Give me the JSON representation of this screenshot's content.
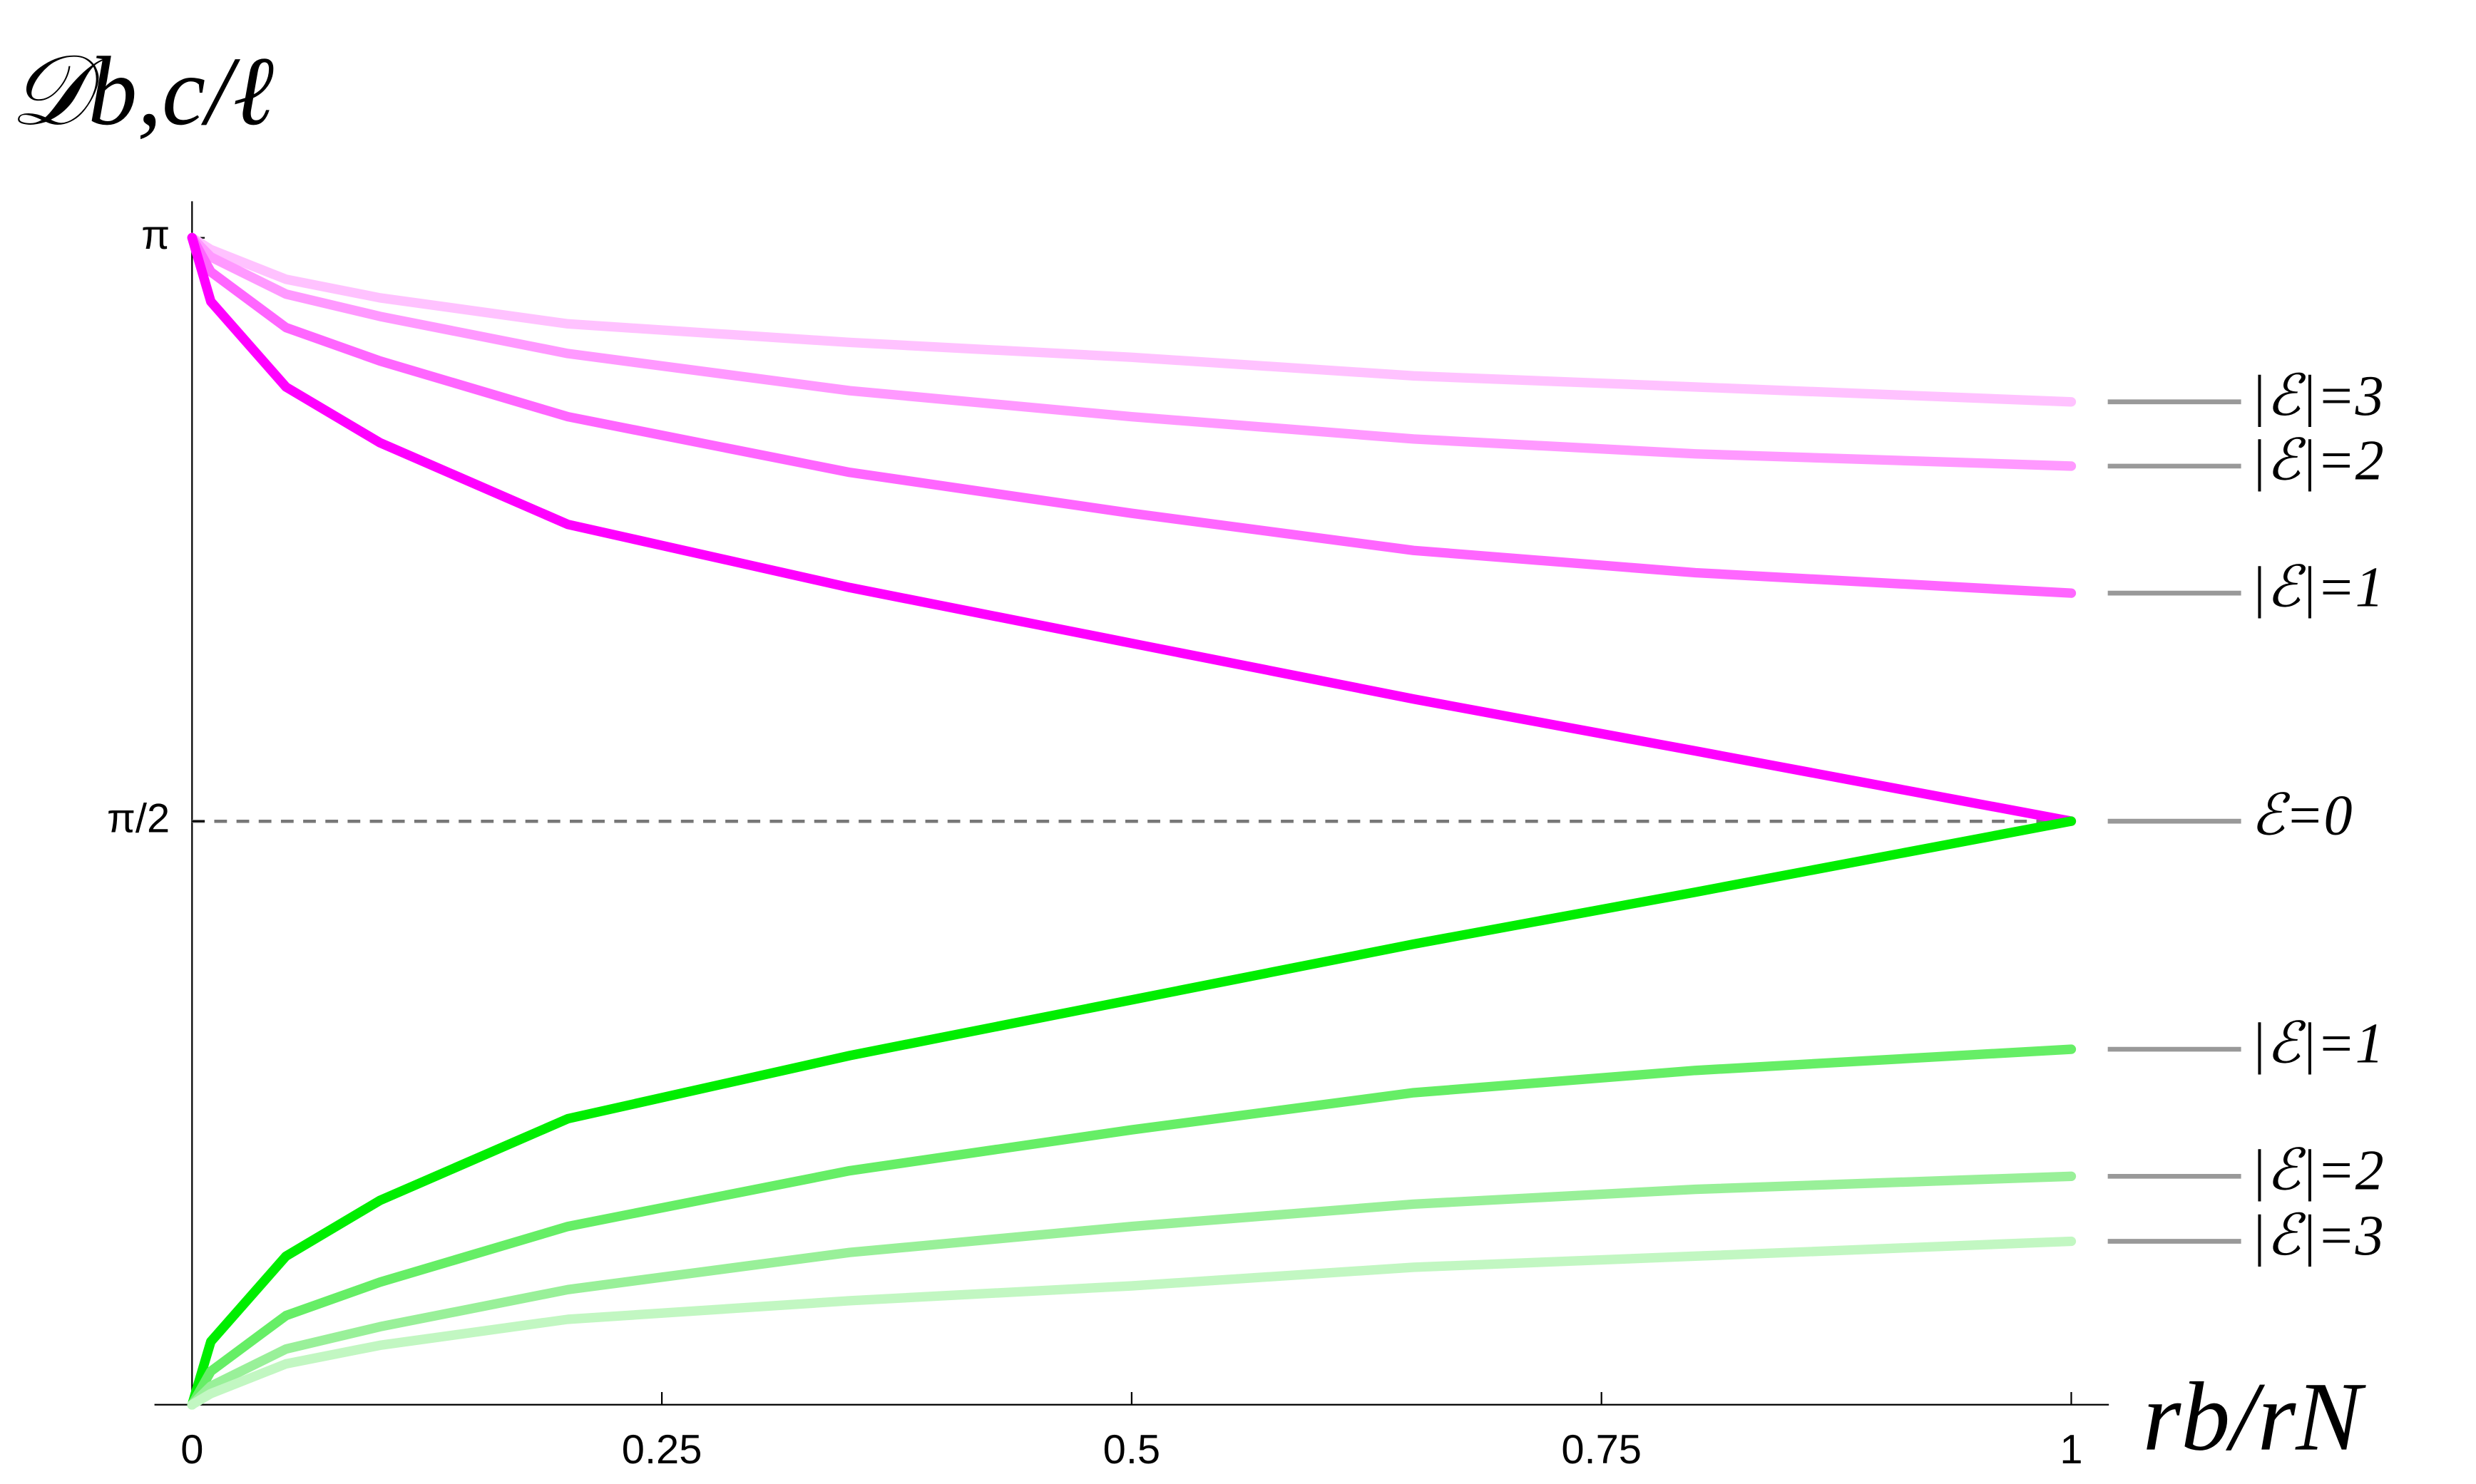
{
  "chart_data": {
    "type": "line",
    "y_label": "𝒟b,c/ℓ",
    "x_label": "rb/rN",
    "x": [
      0,
      0.01,
      0.05,
      0.1,
      0.2,
      0.35,
      0.5,
      0.65,
      0.8,
      1
    ],
    "xlim": [
      -0.02,
      1.02
    ],
    "xticks": [
      0,
      0.25,
      0.5,
      0.75,
      1
    ],
    "ylim": [
      0,
      3.24
    ],
    "yticks": [
      {
        "value": 3.14159,
        "label": "π"
      },
      {
        "value": 1.5708,
        "label": "π/2"
      }
    ],
    "hline": 1.5708,
    "series": [
      {
        "name": "|ℰ|=3",
        "color": "#ffc2ff",
        "values": [
          3.142,
          3.11,
          3.03,
          2.98,
          2.91,
          2.86,
          2.82,
          2.77,
          2.74,
          2.7
        ]
      },
      {
        "name": "|ℰ|=2",
        "color": "#ff99ff",
        "values": [
          3.142,
          3.09,
          2.99,
          2.93,
          2.83,
          2.73,
          2.66,
          2.6,
          2.56,
          2.527
        ]
      },
      {
        "name": "|ℰ|=1",
        "color": "#ff66ff",
        "values": [
          3.142,
          3.05,
          2.9,
          2.81,
          2.66,
          2.51,
          2.4,
          2.3,
          2.24,
          2.185
        ]
      },
      {
        "name": "ℰ=0",
        "color": "#ff00ff",
        "values": [
          3.142,
          2.97,
          2.74,
          2.59,
          2.37,
          2.2,
          2.05,
          1.9,
          1.76,
          1.571
        ]
      },
      {
        "color": "#00ee00",
        "values": [
          0,
          0.17,
          0.4,
          0.55,
          0.77,
          0.94,
          1.09,
          1.24,
          1.38,
          1.571
        ]
      },
      {
        "name": "|ℰ|=1",
        "color": "#66ee66",
        "values": [
          0,
          0.09,
          0.24,
          0.33,
          0.48,
          0.63,
          0.74,
          0.84,
          0.9,
          0.957
        ]
      },
      {
        "name": "|ℰ|=2",
        "color": "#99f099",
        "values": [
          0,
          0.05,
          0.15,
          0.21,
          0.31,
          0.41,
          0.48,
          0.54,
          0.58,
          0.615
        ]
      },
      {
        "name": "|ℰ|=3",
        "color": "#c2f7c2",
        "values": [
          0,
          0.03,
          0.11,
          0.16,
          0.23,
          0.28,
          0.32,
          0.37,
          0.4,
          0.44
        ]
      }
    ]
  }
}
